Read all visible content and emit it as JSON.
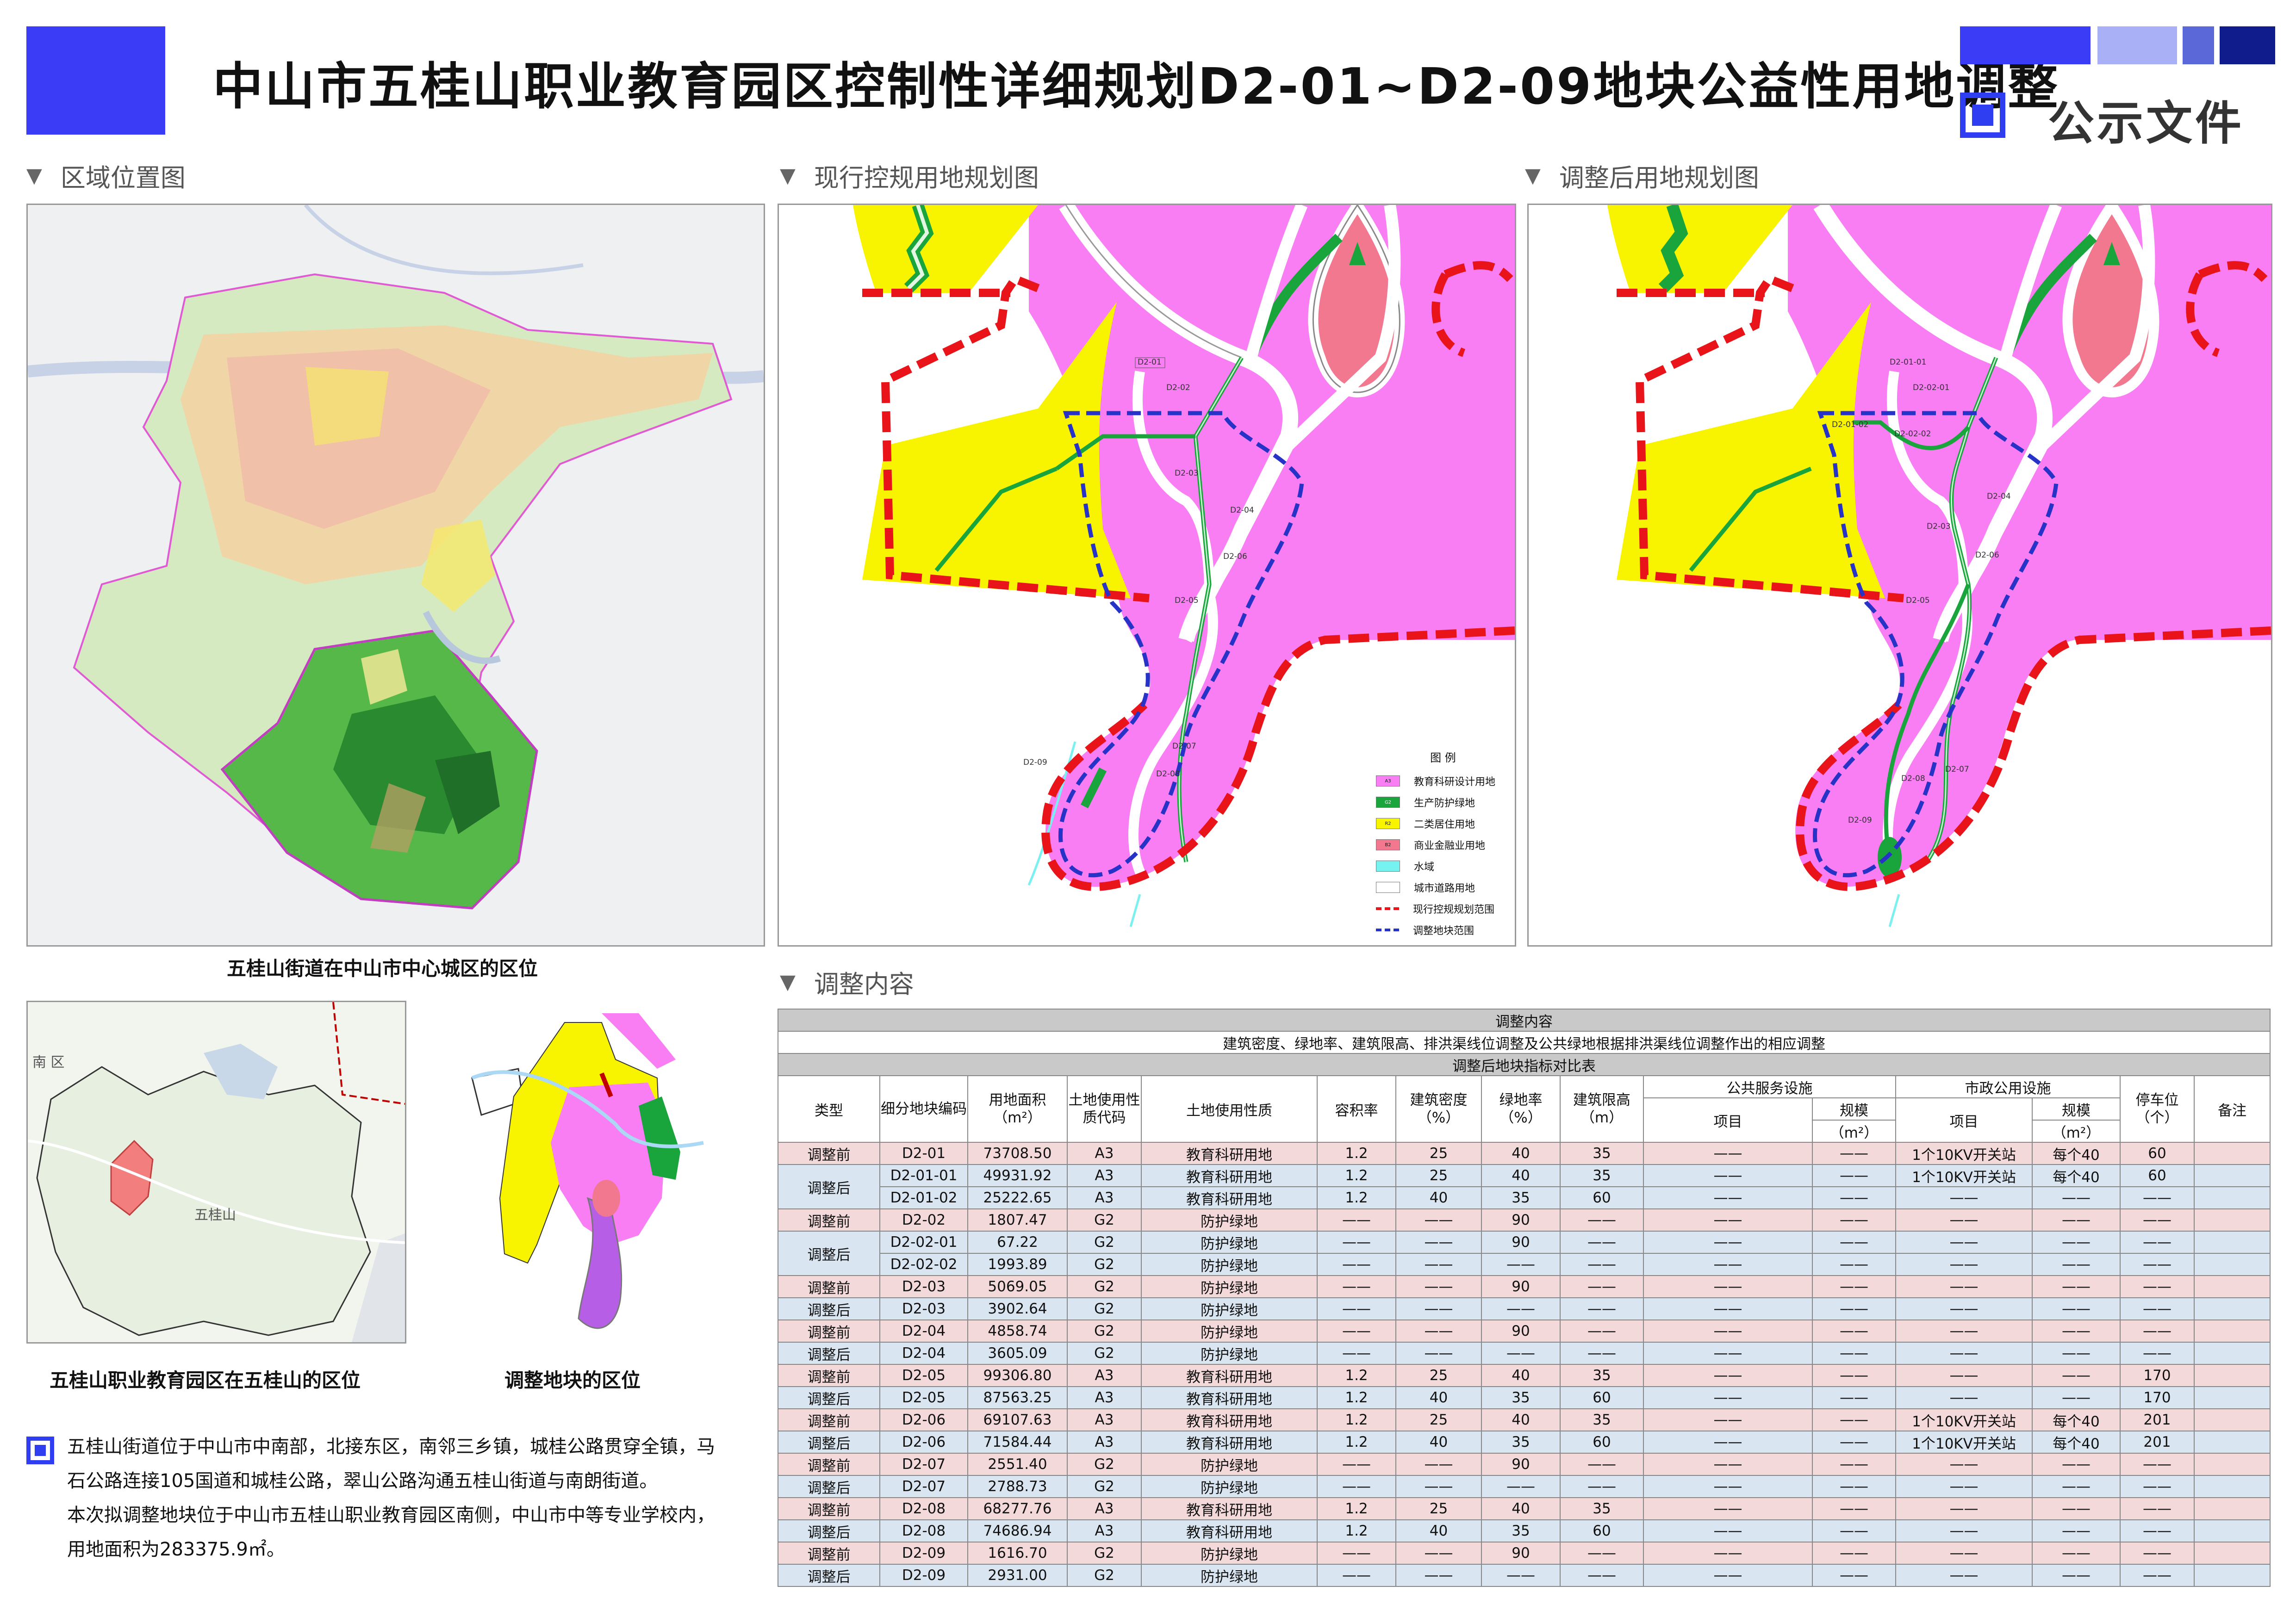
{
  "header": {
    "title": "中山市五桂山职业教育园区控制性详细规划D2-01~D2-09地块公益性用地调整",
    "doc_label": "公示文件"
  },
  "colors": {
    "accent_blue": "#3a3df5",
    "bar_light": "#a9b0f5",
    "bar_mid": "#5a68d8",
    "bar_dark": "#101b8c",
    "edu_pink": "#f97ef4",
    "green_belt": "#1aa43c",
    "residential_yellow": "#f8f400",
    "commercial_pink": "#f1788e",
    "water_cyan": "#76f2f0",
    "boundary_red": "#e8141a",
    "adjust_blue": "#2733c7",
    "row_before": "#f4d9db",
    "row_after": "#d9e5f0"
  },
  "sections": {
    "location": "区域位置图",
    "current": "现行控规用地规划图",
    "adjusted": "调整后用地规划图",
    "content": "调整内容"
  },
  "captions": {
    "map1": "五桂山街道在中山市中心城区的区位",
    "map2": "五桂山职业教育园区在五桂山的区位",
    "map3": "调整地块的区位",
    "map2_place": "五桂山",
    "map2_edge": "南 区"
  },
  "description": {
    "p1": "五桂山街道位于中山市中南部，北接东区，南邻三乡镇，城桂公路贯穿全镇，马石公路连接105国道和城桂公路，翠山公路沟通五桂山街道与南朗街道。",
    "p2": "本次拟调整地块位于中山市五桂山职业教育园区南侧，中山市中等专业学校内，用地面积为283375.9㎡。"
  },
  "map_current": {
    "parcels": [
      "D2-01",
      "D2-02",
      "D2-03",
      "D2-04",
      "D2-06",
      "D2-05",
      "D2-07",
      "D2-08",
      "D2-09"
    ]
  },
  "map_adjusted": {
    "parcels": [
      "D2-01-01",
      "D2-02-01",
      "D2-01-02",
      "D2-02-02",
      "D2-03",
      "D2-04",
      "D2-06",
      "D2-05",
      "D2-07",
      "D2-08",
      "D2-09"
    ]
  },
  "legend": {
    "title": "图  例",
    "items": [
      {
        "code": "A3",
        "label": "教育科研设计用地",
        "color": "#f97ef4"
      },
      {
        "code": "G2",
        "label": "生产防护绿地",
        "color": "#1aa43c"
      },
      {
        "code": "R2",
        "label": "二类居住用地",
        "color": "#f8f400"
      },
      {
        "code": "B2",
        "label": "商业金融业用地",
        "color": "#f1788e"
      },
      {
        "code": "",
        "label": "水域",
        "color": "#76f2f0"
      },
      {
        "code": "",
        "label": "城市道路用地",
        "color": "#ffffff"
      },
      {
        "code": "",
        "label": "现行控规规划范围",
        "color": "#e8141a"
      },
      {
        "code": "",
        "label": "调整地块范围",
        "color": "#2733c7"
      }
    ]
  },
  "table": {
    "title": "调整内容",
    "subtitle": "建筑密度、绿地率、建筑限高、排洪渠线位调整及公共绿地根据排洪渠线位调整作出的相应调整",
    "section": "调整后地块指标对比表",
    "headers": {
      "type": "类型",
      "code": "细分地块编码",
      "area": "用地面积（m²）",
      "land_code": "土地使用性质代码",
      "land_use": "土地使用性质",
      "far": "容积率",
      "density": "建筑密度（%）",
      "green": "绿地率（%）",
      "height": "建筑限高（m）",
      "public": "公共服务设施",
      "municipal": "市政公用设施",
      "pub_item": "项目",
      "pub_scale": "规模",
      "pub_unit": "（m²）",
      "mun_item": "项目",
      "mun_scale": "规模",
      "mun_unit": "（m²）",
      "parking": "停车位（个）",
      "note": "备注"
    },
    "rows": [
      {
        "type": "调整前",
        "code": "D2-01",
        "area": "73708.50",
        "lc": "A3",
        "use": "教育科研用地",
        "far": "1.2",
        "den": "25",
        "grn": "40",
        "hgt": "35",
        "pi": "——",
        "ps": "——",
        "mi": "1个10KV开关站",
        "ms": "每个40",
        "park": "60",
        "note": "",
        "span": 1,
        "kind": "pre"
      },
      {
        "type": "调整后",
        "code": "D2-01-01",
        "area": "49931.92",
        "lc": "A3",
        "use": "教育科研用地",
        "far": "1.2",
        "den": "25",
        "grn": "40",
        "hgt": "35",
        "pi": "——",
        "ps": "——",
        "mi": "1个10KV开关站",
        "ms": "每个40",
        "park": "60",
        "note": "",
        "span": 2,
        "kind": "post"
      },
      {
        "type": "",
        "code": "D2-01-02",
        "area": "25222.65",
        "lc": "A3",
        "use": "教育科研用地",
        "far": "1.2",
        "den": "40",
        "grn": "35",
        "hgt": "60",
        "pi": "——",
        "ps": "——",
        "mi": "——",
        "ms": "——",
        "park": "——",
        "note": "",
        "span": 0,
        "kind": "post"
      },
      {
        "type": "调整前",
        "code": "D2-02",
        "area": "1807.47",
        "lc": "G2",
        "use": "防护绿地",
        "far": "——",
        "den": "——",
        "grn": "90",
        "hgt": "——",
        "pi": "——",
        "ps": "——",
        "mi": "——",
        "ms": "——",
        "park": "——",
        "note": "",
        "span": 1,
        "kind": "pre"
      },
      {
        "type": "调整后",
        "code": "D2-02-01",
        "area": "67.22",
        "lc": "G2",
        "use": "防护绿地",
        "far": "——",
        "den": "——",
        "grn": "90",
        "hgt": "——",
        "pi": "——",
        "ps": "——",
        "mi": "——",
        "ms": "——",
        "park": "——",
        "note": "",
        "span": 2,
        "kind": "post"
      },
      {
        "type": "",
        "code": "D2-02-02",
        "area": "1993.89",
        "lc": "G2",
        "use": "防护绿地",
        "far": "——",
        "den": "——",
        "grn": "——",
        "hgt": "——",
        "pi": "——",
        "ps": "——",
        "mi": "——",
        "ms": "——",
        "park": "——",
        "note": "",
        "span": 0,
        "kind": "post"
      },
      {
        "type": "调整前",
        "code": "D2-03",
        "area": "5069.05",
        "lc": "G2",
        "use": "防护绿地",
        "far": "——",
        "den": "——",
        "grn": "90",
        "hgt": "——",
        "pi": "——",
        "ps": "——",
        "mi": "——",
        "ms": "——",
        "park": "——",
        "note": "",
        "span": 1,
        "kind": "pre"
      },
      {
        "type": "调整后",
        "code": "D2-03",
        "area": "3902.64",
        "lc": "G2",
        "use": "防护绿地",
        "far": "——",
        "den": "——",
        "grn": "——",
        "hgt": "——",
        "pi": "——",
        "ps": "——",
        "mi": "——",
        "ms": "——",
        "park": "——",
        "note": "",
        "span": 1,
        "kind": "post"
      },
      {
        "type": "调整前",
        "code": "D2-04",
        "area": "4858.74",
        "lc": "G2",
        "use": "防护绿地",
        "far": "——",
        "den": "——",
        "grn": "90",
        "hgt": "——",
        "pi": "——",
        "ps": "——",
        "mi": "——",
        "ms": "——",
        "park": "——",
        "note": "",
        "span": 1,
        "kind": "pre"
      },
      {
        "type": "调整后",
        "code": "D2-04",
        "area": "3605.09",
        "lc": "G2",
        "use": "防护绿地",
        "far": "——",
        "den": "——",
        "grn": "——",
        "hgt": "——",
        "pi": "——",
        "ps": "——",
        "mi": "——",
        "ms": "——",
        "park": "——",
        "note": "",
        "span": 1,
        "kind": "post"
      },
      {
        "type": "调整前",
        "code": "D2-05",
        "area": "99306.80",
        "lc": "A3",
        "use": "教育科研用地",
        "far": "1.2",
        "den": "25",
        "grn": "40",
        "hgt": "35",
        "pi": "——",
        "ps": "——",
        "mi": "——",
        "ms": "——",
        "park": "170",
        "note": "",
        "span": 1,
        "kind": "pre"
      },
      {
        "type": "调整后",
        "code": "D2-05",
        "area": "87563.25",
        "lc": "A3",
        "use": "教育科研用地",
        "far": "1.2",
        "den": "40",
        "grn": "35",
        "hgt": "60",
        "pi": "——",
        "ps": "——",
        "mi": "——",
        "ms": "——",
        "park": "170",
        "note": "",
        "span": 1,
        "kind": "post"
      },
      {
        "type": "调整前",
        "code": "D2-06",
        "area": "69107.63",
        "lc": "A3",
        "use": "教育科研用地",
        "far": "1.2",
        "den": "25",
        "grn": "40",
        "hgt": "35",
        "pi": "——",
        "ps": "——",
        "mi": "1个10KV开关站",
        "ms": "每个40",
        "park": "201",
        "note": "",
        "span": 1,
        "kind": "pre"
      },
      {
        "type": "调整后",
        "code": "D2-06",
        "area": "71584.44",
        "lc": "A3",
        "use": "教育科研用地",
        "far": "1.2",
        "den": "40",
        "grn": "35",
        "hgt": "60",
        "pi": "——",
        "ps": "——",
        "mi": "1个10KV开关站",
        "ms": "每个40",
        "park": "201",
        "note": "",
        "span": 1,
        "kind": "post"
      },
      {
        "type": "调整前",
        "code": "D2-07",
        "area": "2551.40",
        "lc": "G2",
        "use": "防护绿地",
        "far": "——",
        "den": "——",
        "grn": "90",
        "hgt": "——",
        "pi": "——",
        "ps": "——",
        "mi": "——",
        "ms": "——",
        "park": "——",
        "note": "",
        "span": 1,
        "kind": "pre"
      },
      {
        "type": "调整后",
        "code": "D2-07",
        "area": "2788.73",
        "lc": "G2",
        "use": "防护绿地",
        "far": "——",
        "den": "——",
        "grn": "——",
        "hgt": "——",
        "pi": "——",
        "ps": "——",
        "mi": "——",
        "ms": "——",
        "park": "——",
        "note": "",
        "span": 1,
        "kind": "post"
      },
      {
        "type": "调整前",
        "code": "D2-08",
        "area": "68277.76",
        "lc": "A3",
        "use": "教育科研用地",
        "far": "1.2",
        "den": "25",
        "grn": "40",
        "hgt": "35",
        "pi": "——",
        "ps": "——",
        "mi": "——",
        "ms": "——",
        "park": "——",
        "note": "",
        "span": 1,
        "kind": "pre"
      },
      {
        "type": "调整后",
        "code": "D2-08",
        "area": "74686.94",
        "lc": "A3",
        "use": "教育科研用地",
        "far": "1.2",
        "den": "40",
        "grn": "35",
        "hgt": "60",
        "pi": "——",
        "ps": "——",
        "mi": "——",
        "ms": "——",
        "park": "——",
        "note": "",
        "span": 1,
        "kind": "post"
      },
      {
        "type": "调整前",
        "code": "D2-09",
        "area": "1616.70",
        "lc": "G2",
        "use": "防护绿地",
        "far": "——",
        "den": "——",
        "grn": "90",
        "hgt": "——",
        "pi": "——",
        "ps": "——",
        "mi": "——",
        "ms": "——",
        "park": "——",
        "note": "",
        "span": 1,
        "kind": "pre"
      },
      {
        "type": "调整后",
        "code": "D2-09",
        "area": "2931.00",
        "lc": "G2",
        "use": "防护绿地",
        "far": "——",
        "den": "——",
        "grn": "——",
        "hgt": "——",
        "pi": "——",
        "ps": "——",
        "mi": "——",
        "ms": "——",
        "park": "——",
        "note": "",
        "span": 1,
        "kind": "post"
      }
    ]
  }
}
